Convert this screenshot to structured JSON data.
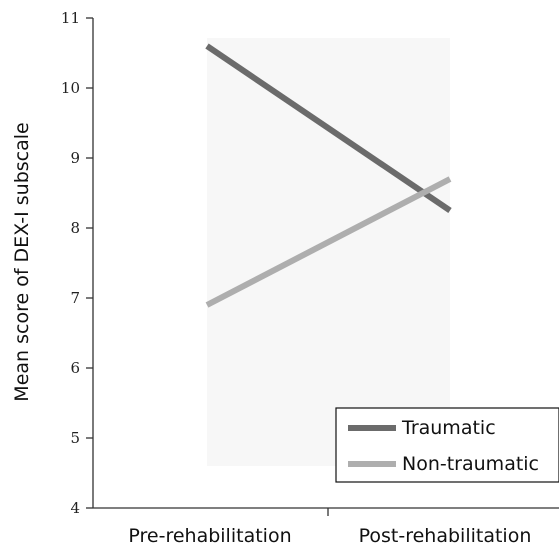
{
  "chart_data": {
    "type": "line",
    "categories": [
      "Pre-rehabilitation",
      "Post-rehabilitation"
    ],
    "series": [
      {
        "name": "Traumatic",
        "values": [
          10.6,
          8.25
        ],
        "color": "#6b6b6b"
      },
      {
        "name": "Non-traumatic",
        "values": [
          6.9,
          8.7
        ],
        "color": "#aeaeae"
      }
    ],
    "ylabel": "Mean score of DEX-I subscale",
    "ylim": [
      4,
      11
    ],
    "yticks": [
      4,
      5,
      6,
      7,
      8,
      9,
      10,
      11
    ],
    "legend_position": "bottom-right",
    "plot_background": "#f7f7f7",
    "grid": false
  }
}
